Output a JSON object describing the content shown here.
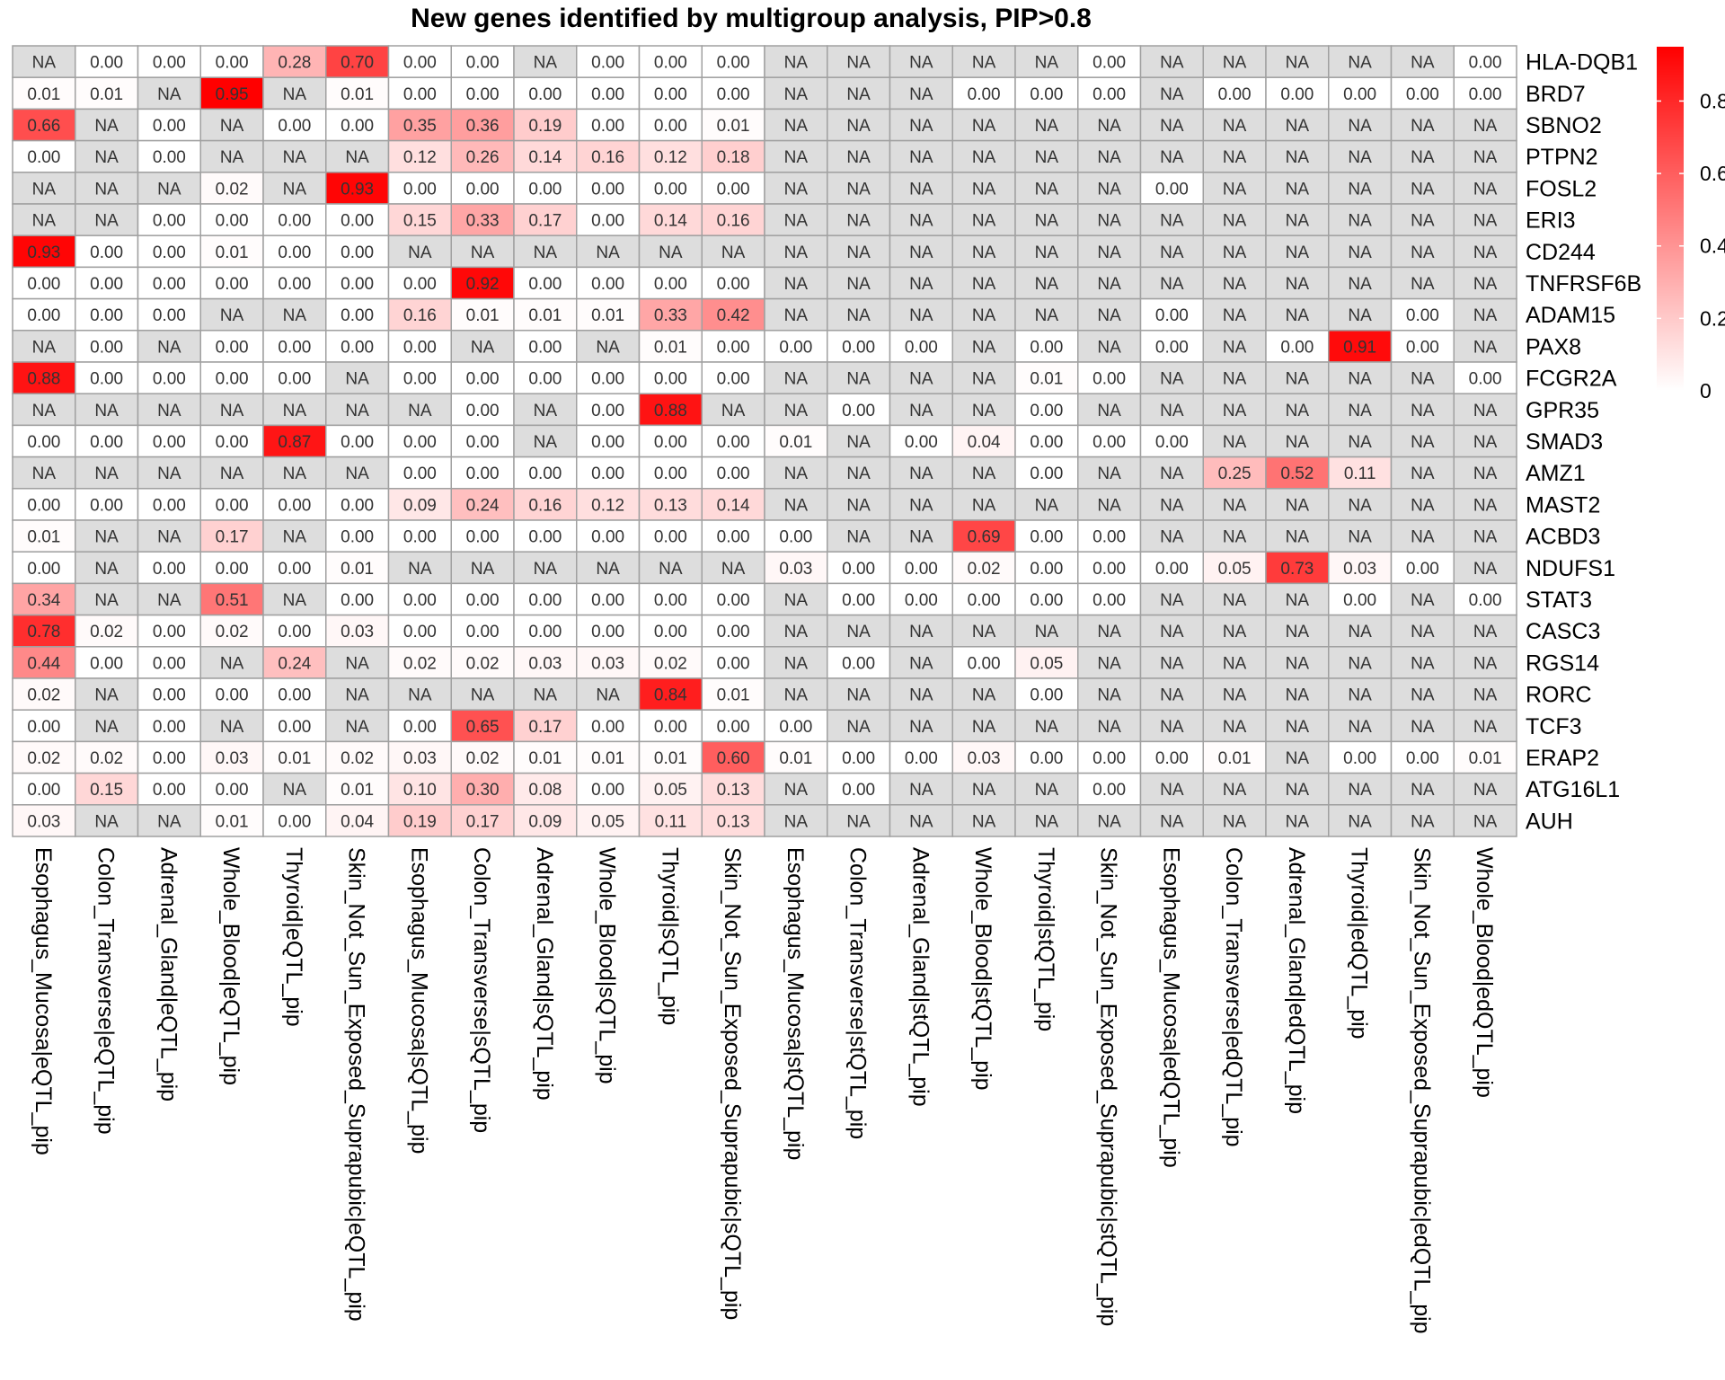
{
  "chart_data": {
    "type": "heatmap",
    "title": "New genes identified by multigroup analysis, PIP>0.8",
    "na_label": "NA",
    "colors": {
      "low": "#ffffff",
      "high": "#ff0000",
      "na": "#dddddd",
      "border": "#a0a0a0"
    },
    "value_range": [
      0,
      0.95
    ],
    "legend": {
      "ticks": [
        0,
        0.2,
        0.4,
        0.6,
        0.8
      ],
      "tick_labels": [
        "0",
        "0.2",
        "0.4",
        "0.6",
        "0.8"
      ],
      "position": "right"
    },
    "columns": [
      "Esophagus_Mucosa|eQTL_pip",
      "Colon_Transverse|eQTL_pip",
      "Adrenal_Gland|eQTL_pip",
      "Whole_Blood|eQTL_pip",
      "Thyroid|eQTL_pip",
      "Skin_Not_Sun_Exposed_Suprapubic|eQTL_pip",
      "Esophagus_Mucosa|sQTL_pip",
      "Colon_Transverse|sQTL_pip",
      "Adrenal_Gland|sQTL_pip",
      "Whole_Blood|sQTL_pip",
      "Thyroid|sQTL_pip",
      "Skin_Not_Sun_Exposed_Suprapubic|sQTL_pip",
      "Esophagus_Mucosa|stQTL_pip",
      "Colon_Transverse|stQTL_pip",
      "Adrenal_Gland|stQTL_pip",
      "Whole_Blood|stQTL_pip",
      "Thyroid|stQTL_pip",
      "Skin_Not_Sun_Exposed_Suprapubic|stQTL_pip",
      "Esophagus_Mucosa|edQTL_pip",
      "Colon_Transverse|edQTL_pip",
      "Adrenal_Gland|edQTL_pip",
      "Thyroid|edQTL_pip",
      "Skin_Not_Sun_Exposed_Suprapubic|edQTL_pip",
      "Whole_Blood|edQTL_pip"
    ],
    "rows": [
      {
        "gene": "HLA-DQB1",
        "values": [
          null,
          0.0,
          0.0,
          0.0,
          0.28,
          0.7,
          0.0,
          0.0,
          null,
          0.0,
          0.0,
          0.0,
          null,
          null,
          null,
          null,
          null,
          0.0,
          null,
          null,
          null,
          null,
          null,
          0.0
        ]
      },
      {
        "gene": "BRD7",
        "values": [
          0.01,
          0.01,
          null,
          0.95,
          null,
          0.01,
          0.0,
          0.0,
          0.0,
          0.0,
          0.0,
          0.0,
          null,
          null,
          null,
          0.0,
          0.0,
          0.0,
          null,
          0.0,
          0.0,
          0.0,
          0.0,
          0.0
        ]
      },
      {
        "gene": "SBNO2",
        "values": [
          0.66,
          null,
          0.0,
          null,
          0.0,
          0.0,
          0.35,
          0.36,
          0.19,
          0.0,
          0.0,
          0.01,
          null,
          null,
          null,
          null,
          null,
          null,
          null,
          null,
          null,
          null,
          null,
          null
        ]
      },
      {
        "gene": "PTPN2",
        "values": [
          0.0,
          null,
          0.0,
          null,
          null,
          null,
          0.12,
          0.26,
          0.14,
          0.16,
          0.12,
          0.18,
          null,
          null,
          null,
          null,
          null,
          null,
          null,
          null,
          null,
          null,
          null,
          null
        ]
      },
      {
        "gene": "FOSL2",
        "values": [
          null,
          null,
          null,
          0.02,
          null,
          0.93,
          0.0,
          0.0,
          0.0,
          0.0,
          0.0,
          0.0,
          null,
          null,
          null,
          null,
          null,
          null,
          0.0,
          null,
          null,
          null,
          null,
          null
        ]
      },
      {
        "gene": "ERI3",
        "values": [
          null,
          null,
          0.0,
          0.0,
          0.0,
          0.0,
          0.15,
          0.33,
          0.17,
          0.0,
          0.14,
          0.16,
          null,
          null,
          null,
          null,
          null,
          null,
          null,
          null,
          null,
          null,
          null,
          null
        ]
      },
      {
        "gene": "CD244",
        "values": [
          0.93,
          0.0,
          0.0,
          0.01,
          0.0,
          0.0,
          null,
          null,
          null,
          null,
          null,
          null,
          null,
          null,
          null,
          null,
          null,
          null,
          null,
          null,
          null,
          null,
          null,
          null
        ]
      },
      {
        "gene": "TNFRSF6B",
        "values": [
          0.0,
          0.0,
          0.0,
          0.0,
          0.0,
          0.0,
          0.0,
          0.92,
          0.0,
          0.0,
          0.0,
          0.0,
          null,
          null,
          null,
          null,
          null,
          null,
          null,
          null,
          null,
          null,
          null,
          null
        ]
      },
      {
        "gene": "ADAM15",
        "values": [
          0.0,
          0.0,
          0.0,
          null,
          null,
          0.0,
          0.16,
          0.01,
          0.01,
          0.01,
          0.33,
          0.42,
          null,
          null,
          null,
          null,
          null,
          null,
          0.0,
          null,
          null,
          null,
          0.0,
          null
        ]
      },
      {
        "gene": "PAX8",
        "values": [
          null,
          0.0,
          null,
          0.0,
          0.0,
          0.0,
          0.0,
          null,
          0.0,
          null,
          0.01,
          0.0,
          0.0,
          0.0,
          0.0,
          null,
          0.0,
          null,
          0.0,
          null,
          0.0,
          0.91,
          0.0,
          null
        ]
      },
      {
        "gene": "FCGR2A",
        "values": [
          0.88,
          0.0,
          0.0,
          0.0,
          0.0,
          null,
          0.0,
          0.0,
          0.0,
          0.0,
          0.0,
          0.0,
          null,
          null,
          null,
          null,
          0.01,
          0.0,
          null,
          null,
          null,
          null,
          null,
          0.0
        ]
      },
      {
        "gene": "GPR35",
        "values": [
          null,
          null,
          null,
          null,
          null,
          null,
          null,
          0.0,
          null,
          0.0,
          0.88,
          null,
          null,
          0.0,
          null,
          null,
          0.0,
          null,
          null,
          null,
          null,
          null,
          null,
          null
        ]
      },
      {
        "gene": "SMAD3",
        "values": [
          0.0,
          0.0,
          0.0,
          0.0,
          0.87,
          0.0,
          0.0,
          0.0,
          null,
          0.0,
          0.0,
          0.0,
          0.01,
          null,
          0.0,
          0.04,
          0.0,
          0.0,
          0.0,
          null,
          null,
          null,
          null,
          null
        ]
      },
      {
        "gene": "AMZ1",
        "values": [
          null,
          null,
          null,
          null,
          null,
          null,
          0.0,
          0.0,
          0.0,
          0.0,
          0.0,
          0.0,
          null,
          null,
          null,
          null,
          0.0,
          null,
          null,
          0.25,
          0.52,
          0.11,
          null,
          null
        ]
      },
      {
        "gene": "MAST2",
        "values": [
          0.0,
          0.0,
          0.0,
          0.0,
          0.0,
          0.0,
          0.09,
          0.24,
          0.16,
          0.12,
          0.13,
          0.14,
          null,
          null,
          null,
          null,
          null,
          null,
          null,
          null,
          null,
          null,
          null,
          null
        ]
      },
      {
        "gene": "ACBD3",
        "values": [
          0.01,
          null,
          null,
          0.17,
          null,
          0.0,
          0.0,
          0.0,
          0.0,
          0.0,
          0.0,
          0.0,
          0.0,
          null,
          null,
          0.69,
          0.0,
          0.0,
          null,
          null,
          null,
          null,
          null,
          null
        ]
      },
      {
        "gene": "NDUFS1",
        "values": [
          0.0,
          null,
          0.0,
          0.0,
          0.0,
          0.01,
          null,
          null,
          null,
          null,
          null,
          null,
          0.03,
          0.0,
          0.0,
          0.02,
          0.0,
          0.0,
          0.0,
          0.05,
          0.73,
          0.03,
          0.0,
          null
        ]
      },
      {
        "gene": "STAT3",
        "values": [
          0.34,
          null,
          null,
          0.51,
          null,
          0.0,
          0.0,
          0.0,
          0.0,
          0.0,
          0.0,
          0.0,
          null,
          0.0,
          0.0,
          0.0,
          0.0,
          0.0,
          null,
          null,
          null,
          0.0,
          null,
          0.0
        ]
      },
      {
        "gene": "CASC3",
        "values": [
          0.78,
          0.02,
          0.0,
          0.02,
          0.0,
          0.03,
          0.0,
          0.0,
          0.0,
          0.0,
          0.0,
          0.0,
          null,
          null,
          null,
          null,
          null,
          null,
          null,
          null,
          null,
          null,
          null,
          null
        ]
      },
      {
        "gene": "RGS14",
        "values": [
          0.44,
          0.0,
          0.0,
          null,
          0.24,
          null,
          0.02,
          0.02,
          0.03,
          0.03,
          0.02,
          0.0,
          null,
          0.0,
          null,
          0.0,
          0.05,
          null,
          null,
          null,
          null,
          null,
          null,
          null
        ]
      },
      {
        "gene": "RORC",
        "values": [
          0.02,
          null,
          0.0,
          0.0,
          0.0,
          null,
          null,
          null,
          null,
          null,
          0.84,
          0.01,
          null,
          null,
          null,
          null,
          0.0,
          null,
          null,
          null,
          null,
          null,
          null,
          null
        ]
      },
      {
        "gene": "TCF3",
        "values": [
          0.0,
          null,
          0.0,
          null,
          0.0,
          null,
          0.0,
          0.65,
          0.17,
          0.0,
          0.0,
          0.0,
          0.0,
          null,
          null,
          null,
          null,
          null,
          null,
          null,
          null,
          null,
          null,
          null
        ]
      },
      {
        "gene": "ERAP2",
        "values": [
          0.02,
          0.02,
          0.0,
          0.03,
          0.01,
          0.02,
          0.03,
          0.02,
          0.01,
          0.01,
          0.01,
          0.6,
          0.01,
          0.0,
          0.0,
          0.03,
          0.0,
          0.0,
          0.0,
          0.01,
          null,
          0.0,
          0.0,
          0.01
        ]
      },
      {
        "gene": "ATG16L1",
        "values": [
          0.0,
          0.15,
          0.0,
          0.0,
          null,
          0.01,
          0.1,
          0.3,
          0.08,
          0.0,
          0.05,
          0.13,
          null,
          0.0,
          null,
          null,
          null,
          0.0,
          null,
          null,
          null,
          null,
          null,
          null
        ]
      },
      {
        "gene": "AUH",
        "values": [
          0.03,
          null,
          null,
          0.01,
          0.0,
          0.04,
          0.19,
          0.17,
          0.09,
          0.05,
          0.11,
          0.13,
          null,
          null,
          null,
          null,
          null,
          null,
          null,
          null,
          null,
          null,
          null,
          null
        ]
      }
    ]
  }
}
